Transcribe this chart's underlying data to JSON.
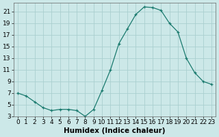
{
  "x": [
    0,
    1,
    2,
    3,
    4,
    5,
    6,
    7,
    8,
    9,
    10,
    11,
    12,
    13,
    14,
    15,
    16,
    17,
    18,
    19,
    20,
    21,
    22,
    23
  ],
  "y": [
    7.0,
    6.5,
    5.5,
    4.5,
    4.0,
    4.2,
    4.2,
    4.0,
    3.0,
    4.2,
    7.5,
    11.0,
    15.5,
    18.0,
    20.5,
    21.8,
    21.7,
    21.2,
    19.0,
    17.5,
    13.0,
    10.5,
    9.0,
    8.5
  ],
  "line_color": "#1a7a6e",
  "marker": "+",
  "marker_size": 3,
  "bg_color": "#cce8e8",
  "grid_color": "#aacfcf",
  "xlabel": "Humidex (Indice chaleur)",
  "ylim": [
    3,
    22.5
  ],
  "xlim": [
    -0.5,
    23.5
  ],
  "yticks": [
    3,
    5,
    7,
    9,
    11,
    13,
    15,
    17,
    19,
    21
  ],
  "xticks": [
    0,
    1,
    2,
    3,
    4,
    5,
    6,
    7,
    8,
    9,
    10,
    11,
    12,
    13,
    14,
    15,
    16,
    17,
    18,
    19,
    20,
    21,
    22,
    23
  ],
  "label_fontsize": 7.5,
  "tick_fontsize": 6.5
}
